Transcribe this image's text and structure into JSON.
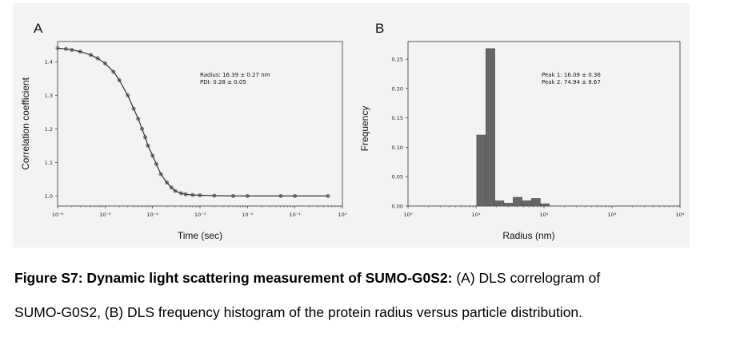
{
  "chart_data": [
    {
      "panel_label": "A",
      "type": "scatter",
      "x_scale": "log",
      "xlabel": "Time (sec)",
      "ylabel": "Correlation coefficient",
      "xlim": [
        1e-06,
        1
      ],
      "ylim": [
        0.97,
        1.46
      ],
      "x_ticks": [
        "10⁻⁶",
        "10⁻⁵",
        "10⁻⁴",
        "10⁻³",
        "10⁻²",
        "10⁻¹",
        "10⁰"
      ],
      "y_ticks": [
        "1.0",
        "1.1",
        "1.2",
        "1.3",
        "1.4"
      ],
      "annotation": [
        "Radius: 16.39 ± 0.27 nm",
        "PDI: 0.28 ± 0.05"
      ],
      "series": [
        {
          "marker_color": "#8c8c8c",
          "fit_color": "#333333",
          "x": [
            1e-06,
            1.5e-06,
            2e-06,
            3e-06,
            5e-06,
            7e-06,
            1e-05,
            1.5e-05,
            2e-05,
            3e-05,
            4e-05,
            5e-05,
            6e-05,
            7e-05,
            8e-05,
            0.0001,
            0.00012,
            0.00015,
            0.0002,
            0.00025,
            0.0003,
            0.0004,
            0.0005,
            0.0007,
            0.001,
            0.002,
            0.005,
            0.01,
            0.05,
            0.1,
            0.5
          ],
          "y": [
            1.44,
            1.438,
            1.435,
            1.43,
            1.42,
            1.41,
            1.395,
            1.37,
            1.345,
            1.3,
            1.26,
            1.23,
            1.2,
            1.175,
            1.15,
            1.12,
            1.095,
            1.065,
            1.04,
            1.025,
            1.015,
            1.008,
            1.005,
            1.003,
            1.002,
            1.001,
            1.0,
            1.0,
            1.0,
            1.0,
            1.0
          ]
        }
      ]
    },
    {
      "panel_label": "B",
      "type": "bar",
      "x_scale": "log",
      "xlabel": "Radius (nm)",
      "ylabel": "Frequency",
      "xlim": [
        1,
        10000
      ],
      "ylim": [
        0,
        0.28
      ],
      "x_ticks": [
        "10⁰",
        "10¹",
        "10²",
        "10³",
        "10⁴"
      ],
      "y_ticks": [
        "0.00",
        "0.05",
        "0.10",
        "0.15",
        "0.20",
        "0.25"
      ],
      "annotation": [
        "Peak 1: 16.09 ± 0.36",
        "Peak 2: 74.94 ± 8.67"
      ],
      "bar_color": "#666666",
      "bins": [
        {
          "x0": 10.2,
          "x1": 13.9,
          "value": 0.121
        },
        {
          "x0": 13.9,
          "x1": 19.0,
          "value": 0.268
        },
        {
          "x0": 19.0,
          "x1": 25.8,
          "value": 0.009
        },
        {
          "x0": 25.8,
          "x1": 35.1,
          "value": 0.005
        },
        {
          "x0": 35.1,
          "x1": 47.8,
          "value": 0.015
        },
        {
          "x0": 47.8,
          "x1": 65.0,
          "value": 0.009
        },
        {
          "x0": 65.0,
          "x1": 88.5,
          "value": 0.013
        },
        {
          "x0": 88.5,
          "x1": 120.0,
          "value": 0.004
        }
      ]
    }
  ],
  "caption": {
    "line1_bold": "Figure S7: Dynamic light scattering measurement of SUMO-G0S2:",
    "line1_rest": " (A) DLS correlogram of",
    "line2": "SUMO-G0S2, (B) DLS frequency histogram of the protein radius versus particle distribution."
  }
}
